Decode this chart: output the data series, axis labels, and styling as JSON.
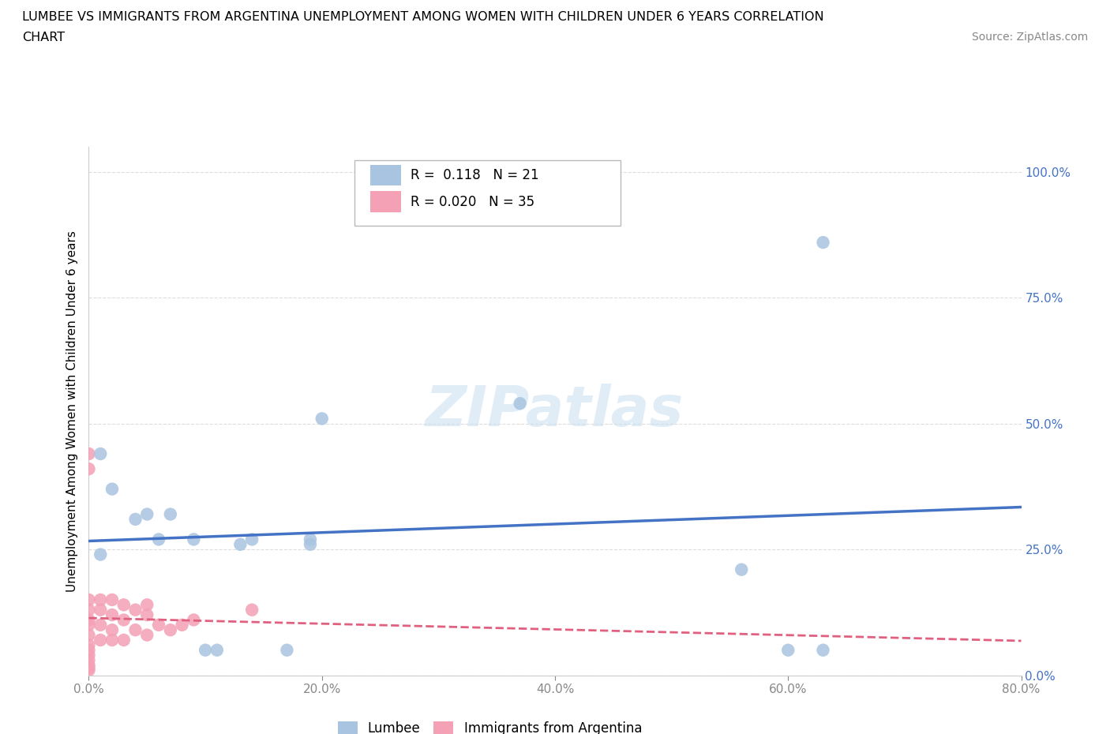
{
  "title_line1": "LUMBEE VS IMMIGRANTS FROM ARGENTINA UNEMPLOYMENT AMONG WOMEN WITH CHILDREN UNDER 6 YEARS CORRELATION",
  "title_line2": "CHART",
  "source": "Source: ZipAtlas.com",
  "ylabel": "Unemployment Among Women with Children Under 6 years",
  "lumbee_R": 0.118,
  "lumbee_N": 21,
  "argentina_R": 0.02,
  "argentina_N": 35,
  "lumbee_color": "#a8c4e0",
  "argentina_color": "#f4a0b5",
  "lumbee_line_color": "#4472c4",
  "argentina_line_color": "#e06080",
  "xlim": [
    0.0,
    0.8
  ],
  "ylim": [
    0.0,
    1.05
  ],
  "right_yticks": [
    0.0,
    0.25,
    0.5,
    0.75,
    1.0
  ],
  "right_ytick_labels": [
    "0.0%",
    "25.0%",
    "50.0%",
    "75.0%",
    "100.0%"
  ],
  "xtick_positions": [
    0.0,
    0.2,
    0.4,
    0.6,
    0.8
  ],
  "xtick_labels": [
    "0.0%",
    "20.0%",
    "40.0%",
    "60.0%",
    "80.0%"
  ],
  "lumbee_x": [
    0.01,
    0.01,
    0.02,
    0.04,
    0.05,
    0.06,
    0.07,
    0.09,
    0.1,
    0.11,
    0.13,
    0.14,
    0.17,
    0.19,
    0.19,
    0.2,
    0.37,
    0.56,
    0.6,
    0.63,
    0.63
  ],
  "lumbee_y": [
    0.44,
    0.24,
    0.37,
    0.31,
    0.32,
    0.27,
    0.32,
    0.27,
    0.05,
    0.05,
    0.26,
    0.27,
    0.05,
    0.26,
    0.27,
    0.51,
    0.54,
    0.21,
    0.05,
    0.05,
    0.86
  ],
  "argentina_x": [
    0.0,
    0.0,
    0.0,
    0.0,
    0.0,
    0.0,
    0.0,
    0.0,
    0.0,
    0.0,
    0.0,
    0.0,
    0.0,
    0.0,
    0.01,
    0.01,
    0.01,
    0.01,
    0.02,
    0.02,
    0.02,
    0.02,
    0.03,
    0.03,
    0.03,
    0.04,
    0.04,
    0.05,
    0.05,
    0.05,
    0.06,
    0.07,
    0.08,
    0.09,
    0.14
  ],
  "argentina_y": [
    0.44,
    0.41,
    0.15,
    0.13,
    0.11,
    0.1,
    0.08,
    0.06,
    0.05,
    0.04,
    0.03,
    0.02,
    0.015,
    0.01,
    0.15,
    0.13,
    0.1,
    0.07,
    0.15,
    0.12,
    0.09,
    0.07,
    0.14,
    0.11,
    0.07,
    0.13,
    0.09,
    0.14,
    0.12,
    0.08,
    0.1,
    0.09,
    0.1,
    0.11,
    0.13
  ],
  "watermark": "ZIPatlas",
  "bg_color": "#ffffff",
  "grid_color": "#dddddd"
}
